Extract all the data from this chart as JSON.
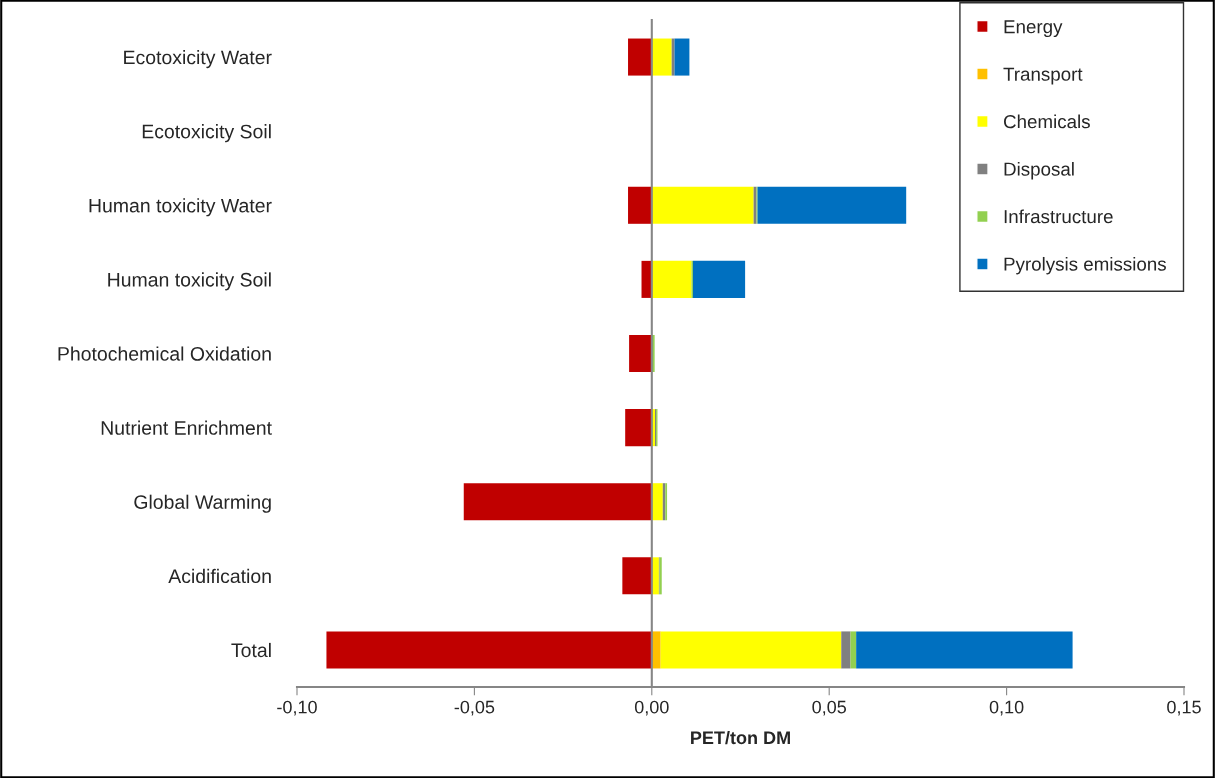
{
  "chart_data": {
    "type": "bar",
    "orientation": "horizontal",
    "stacked": true,
    "categories": [
      "Ecotoxicity Water",
      "Ecotoxicity Soil",
      "Human toxicity Water",
      "Human toxicity Soil",
      "Photochemical Oxidation",
      "Nutrient Enrichment",
      "Global Warming",
      "Acidification",
      "Total"
    ],
    "series": [
      {
        "name": "Energy",
        "color": "#c00000",
        "values": [
          -0.0067,
          null,
          -0.0067,
          -0.0029,
          -0.0064,
          -0.0075,
          -0.053,
          -0.0083,
          -0.0917
        ]
      },
      {
        "name": "Transport",
        "color": "#ffc000",
        "values": [
          0,
          0,
          0,
          0,
          0,
          0,
          0,
          0,
          0.0025
        ]
      },
      {
        "name": "Chemicals",
        "color": "#ffff00",
        "values": [
          0.0056,
          0,
          0.0287,
          0.0112,
          0,
          0.0009,
          0.0031,
          0.002,
          0.0509
        ]
      },
      {
        "name": "Disposal",
        "color": "#808080",
        "values": [
          0.0008,
          0,
          0.0008,
          0,
          0,
          0.0003,
          0.0007,
          0.0002,
          0.0026
        ]
      },
      {
        "name": "Infrastructure",
        "color": "#92d050",
        "values": [
          0,
          0,
          0.0003,
          0.0004,
          0.0008,
          0.0004,
          0.0005,
          0.0006,
          0.0016
        ]
      },
      {
        "name": "Pyrolysis emissions",
        "color": "#0070c0",
        "values": [
          0.0042,
          null,
          0.0419,
          0.0147,
          0,
          0,
          0,
          0,
          0.061
        ]
      }
    ],
    "xlabel": "PET/ton DM",
    "xlim": [
      -0.1,
      0.15
    ],
    "xticks": [
      {
        "value": -0.1,
        "label": "-0,10"
      },
      {
        "value": -0.05,
        "label": "-0,05"
      },
      {
        "value": 0,
        "label": "0,00"
      },
      {
        "value": 0.05,
        "label": "0,05"
      },
      {
        "value": 0.1,
        "label": "0,10"
      },
      {
        "value": 0.15,
        "label": "0,15"
      }
    ],
    "legend": "top right"
  }
}
